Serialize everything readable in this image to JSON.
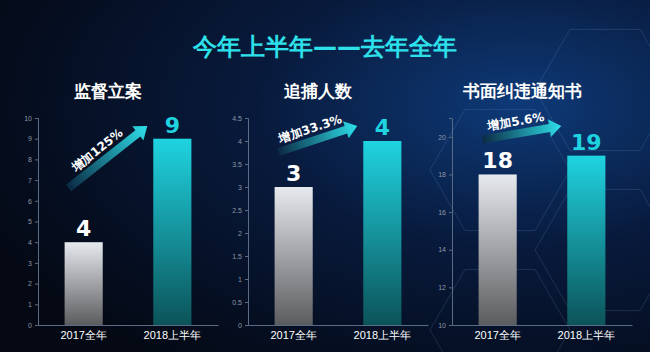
{
  "title": "今年上半年——去年全年",
  "chart_data": [
    {
      "type": "bar",
      "title": "监督立案",
      "categories": [
        "2017全年",
        "2018上半年"
      ],
      "values": [
        4,
        9
      ],
      "colors": [
        "#e6e9ee",
        "#1fd3e0"
      ],
      "ylim": [
        0,
        10
      ],
      "yticks": [
        0,
        1,
        2,
        3,
        4,
        5,
        6,
        7,
        8,
        9,
        10
      ],
      "grid": false,
      "data_labels": true,
      "annotations": [
        "增加125%"
      ]
    },
    {
      "type": "bar",
      "title": "追捕人数",
      "categories": [
        "2017全年",
        "2018上半年"
      ],
      "values": [
        3,
        4
      ],
      "colors": [
        "#e6e9ee",
        "#1fd3e0"
      ],
      "ylim": [
        0,
        4.5
      ],
      "yticks": [
        0,
        0.5,
        1,
        1.5,
        2,
        2.5,
        3,
        3.5,
        4,
        4.5
      ],
      "grid": false,
      "data_labels": true,
      "annotations": [
        "增加33.3%"
      ]
    },
    {
      "type": "bar",
      "title": "书面纠违通知书",
      "categories": [
        "2017全年",
        "2018上半年"
      ],
      "values": [
        18,
        19
      ],
      "colors": [
        "#e6e9ee",
        "#1fd3e0"
      ],
      "ylim": [
        10,
        21
      ],
      "yticks": [
        10,
        12,
        14,
        16,
        18,
        20
      ],
      "grid": false,
      "data_labels": true,
      "annotations": [
        "增加5.6%"
      ]
    }
  ]
}
